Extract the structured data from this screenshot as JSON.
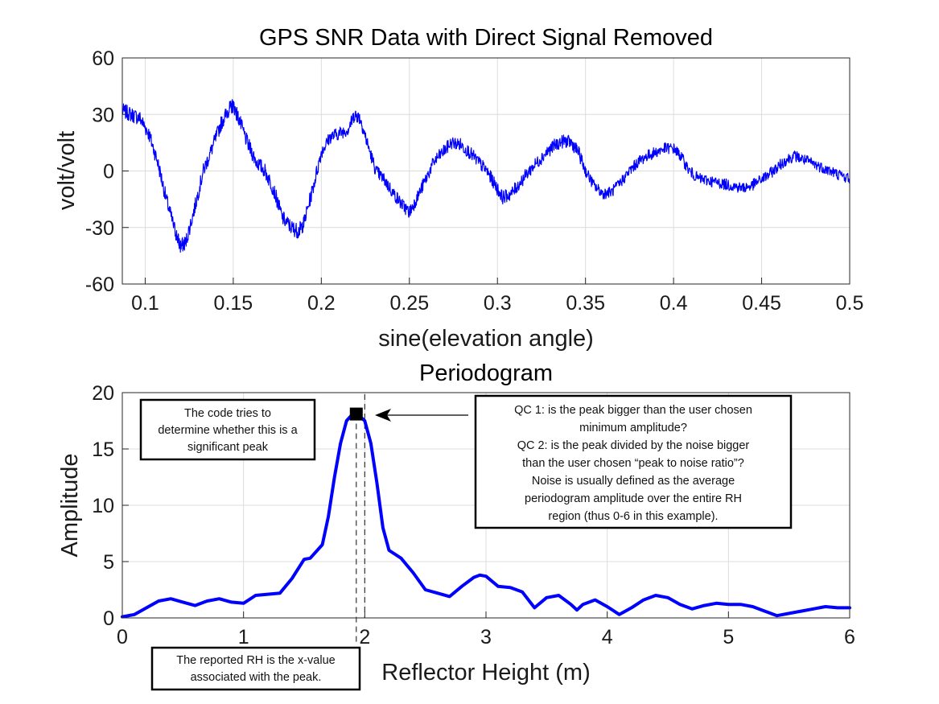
{
  "chart_data": [
    {
      "type": "line",
      "title": "GPS SNR Data with Direct Signal Removed",
      "xlabel": "sine(elevation angle)",
      "ylabel": "volt/volt",
      "xlim": [
        0.087,
        0.5
      ],
      "ylim": [
        -60,
        60
      ],
      "xticks": [
        0.1,
        0.15,
        0.2,
        0.25,
        0.3,
        0.35,
        0.4,
        0.45,
        0.5
      ],
      "xtick_labels": [
        "0.1",
        "0.15",
        "0.2",
        "0.25",
        "0.3",
        "0.35",
        "0.4",
        "0.45",
        "0.5"
      ],
      "yticks": [
        60,
        30,
        0,
        -30,
        -60
      ],
      "ytick_labels": [
        "60",
        "30",
        "0",
        "-30",
        "-60"
      ],
      "grid": true,
      "color": "#0000ff",
      "series": [
        {
          "x": [
            0.087,
            0.092,
            0.097,
            0.102,
            0.107,
            0.112,
            0.117,
            0.12,
            0.123,
            0.128,
            0.133,
            0.138,
            0.143,
            0.147,
            0.15,
            0.153,
            0.158,
            0.163,
            0.168,
            0.173,
            0.178,
            0.183,
            0.187,
            0.19,
            0.195,
            0.2,
            0.205,
            0.21,
            0.215,
            0.219,
            0.222,
            0.226,
            0.231,
            0.236,
            0.241,
            0.246,
            0.25,
            0.254,
            0.259,
            0.264,
            0.269,
            0.274,
            0.279,
            0.284,
            0.289,
            0.294,
            0.299,
            0.303,
            0.308,
            0.313,
            0.318,
            0.323,
            0.328,
            0.333,
            0.338,
            0.342,
            0.346,
            0.35,
            0.355,
            0.36,
            0.365,
            0.37,
            0.375,
            0.38,
            0.385,
            0.39,
            0.395,
            0.4,
            0.404,
            0.409,
            0.414,
            0.419,
            0.424,
            0.429,
            0.434,
            0.439,
            0.444,
            0.449,
            0.454,
            0.459,
            0.464,
            0.469,
            0.474,
            0.479,
            0.484,
            0.489,
            0.494,
            0.5
          ],
          "y": [
            32,
            30,
            28,
            20,
            5,
            -15,
            -32,
            -40,
            -38,
            -20,
            0,
            12,
            25,
            32,
            35,
            28,
            15,
            5,
            0,
            -10,
            -25,
            -30,
            -32,
            -28,
            -10,
            10,
            18,
            20,
            22,
            30,
            28,
            15,
            0,
            -5,
            -12,
            -18,
            -22,
            -15,
            -5,
            5,
            10,
            15,
            14,
            10,
            5,
            0,
            -8,
            -14,
            -12,
            -6,
            0,
            5,
            10,
            14,
            16,
            15,
            10,
            0,
            -8,
            -12,
            -11,
            -6,
            0,
            5,
            8,
            10,
            12,
            12,
            8,
            0,
            -4,
            -5,
            -6,
            -7,
            -8,
            -9,
            -8,
            -5,
            -2,
            2,
            6,
            8,
            6,
            4,
            2,
            0,
            -2,
            -4
          ]
        }
      ]
    },
    {
      "type": "line",
      "title": "Periodogram",
      "xlabel": "Reflector Height (m)",
      "ylabel": "Amplitude",
      "xlim": [
        0,
        6
      ],
      "ylim": [
        0,
        20
      ],
      "xticks": [
        0,
        1,
        2,
        3,
        4,
        5,
        6
      ],
      "xtick_labels": [
        "0",
        "1",
        "2",
        "3",
        "4",
        "5",
        "6"
      ],
      "yticks": [
        20,
        15,
        10,
        5,
        0
      ],
      "ytick_labels": [
        "20",
        "15",
        "10",
        "5",
        "0"
      ],
      "grid": true,
      "color": "#0000ff",
      "series": [
        {
          "x": [
            0,
            0.1,
            0.2,
            0.3,
            0.4,
            0.5,
            0.6,
            0.7,
            0.8,
            0.9,
            1.0,
            1.1,
            1.2,
            1.3,
            1.4,
            1.5,
            1.55,
            1.65,
            1.7,
            1.75,
            1.8,
            1.85,
            1.9,
            1.95,
            2.0,
            2.05,
            2.1,
            2.15,
            2.2,
            2.3,
            2.4,
            2.5,
            2.6,
            2.7,
            2.8,
            2.9,
            2.95,
            3.0,
            3.1,
            3.2,
            3.3,
            3.4,
            3.5,
            3.6,
            3.7,
            3.75,
            3.8,
            3.9,
            4.0,
            4.1,
            4.2,
            4.3,
            4.4,
            4.5,
            4.6,
            4.7,
            4.8,
            4.9,
            5.0,
            5.1,
            5.2,
            5.3,
            5.4,
            5.5,
            5.6,
            5.7,
            5.8,
            5.9,
            6.0
          ],
          "y": [
            0.1,
            0.3,
            0.9,
            1.5,
            1.7,
            1.4,
            1.1,
            1.5,
            1.7,
            1.4,
            1.3,
            2.0,
            2.1,
            2.2,
            3.5,
            5.2,
            5.3,
            6.5,
            9.0,
            12.5,
            15.5,
            17.5,
            18.1,
            18.0,
            17.5,
            15.5,
            12.0,
            8.0,
            6.0,
            5.3,
            4.0,
            2.5,
            2.2,
            1.9,
            2.8,
            3.6,
            3.8,
            3.7,
            2.8,
            2.7,
            2.3,
            0.9,
            1.8,
            2.0,
            1.2,
            0.7,
            1.2,
            1.6,
            1.0,
            0.3,
            0.9,
            1.6,
            2.0,
            1.8,
            1.2,
            0.8,
            1.1,
            1.3,
            1.2,
            1.2,
            1.0,
            0.6,
            0.2,
            0.4,
            0.6,
            0.8,
            1.0,
            0.9,
            0.9
          ]
        }
      ],
      "peak": {
        "x": 1.93,
        "y": 18.1
      },
      "annotations": {
        "left_box": [
          "The code tries to",
          "determine whether this is a",
          "significant peak"
        ],
        "right_box": [
          "QC 1: is the peak bigger than the user chosen",
          "minimum amplitude?",
          "QC 2: is the peak divided by the noise bigger",
          "than the user chosen “peak to noise ratio”?",
          "Noise is usually defined as the average",
          "periodogram amplitude over the entire RH",
          "region (thus 0-6 in this example)."
        ],
        "bottom_box": [
          "The reported RH is the x-value",
          "associated with the peak."
        ]
      }
    }
  ]
}
